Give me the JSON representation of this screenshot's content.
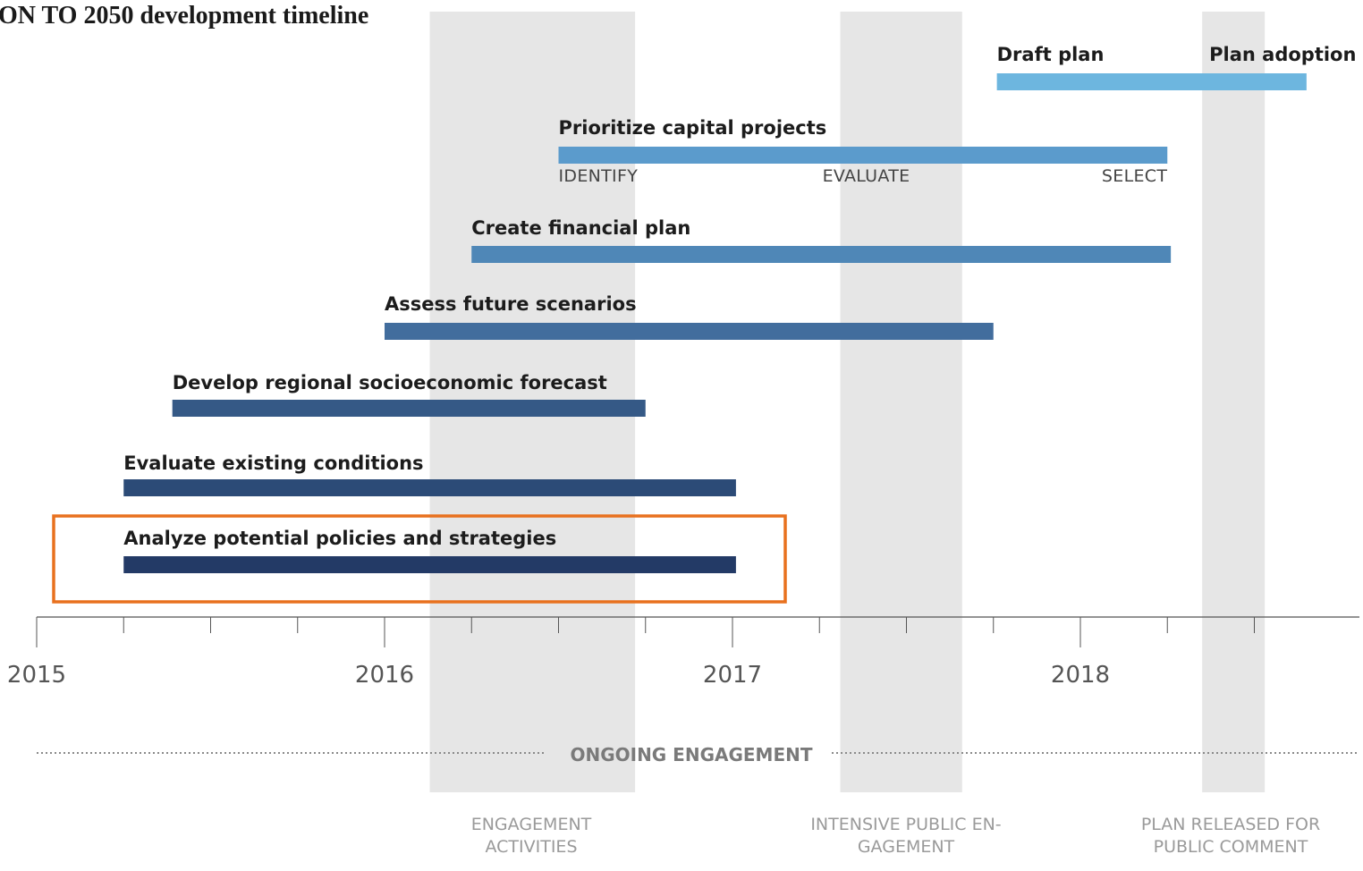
{
  "title": "ON TO 2050 development timeline",
  "colors": {
    "band": "#e6e6e6",
    "highlight": "#e8711e",
    "axis": "#555555"
  },
  "chart_data": {
    "type": "gantt",
    "x_axis": {
      "range": [
        2015.0,
        2018.7
      ],
      "major_ticks": [
        2015,
        2016,
        2017,
        2018
      ],
      "tick_labels": [
        "2015",
        "2016",
        "2017",
        "2018"
      ],
      "minor_tick_step": 0.25
    },
    "bands": [
      {
        "start": 2016.13,
        "end": 2016.72,
        "label_lines": [
          "ENGAGEMENT",
          "ACTIVITIES"
        ]
      },
      {
        "start": 2017.31,
        "end": 2017.66,
        "label_lines": [
          "INTENSIVE PUBLIC EN-",
          "GAGEMENT"
        ]
      },
      {
        "start": 2018.35,
        "end": 2018.53,
        "label_lines": [
          "PLAN RELEASED FOR",
          "PUBLIC COMMENT"
        ]
      }
    ],
    "tasks": [
      {
        "label": "Draft plan",
        "start": 2017.76,
        "end": 2018.35,
        "color": "#6db6df",
        "end_label": "Plan adoption",
        "highlighted": false
      },
      {
        "label": "Prioritize capital projects",
        "start": 2016.5,
        "end": 2018.25,
        "color": "#5b9bcc",
        "phases": [
          "IDENTIFY",
          "EVALUATE",
          "SELECT"
        ],
        "highlighted": false
      },
      {
        "label": "Create financial plan",
        "start": 2016.25,
        "end": 2018.26,
        "color": "#4f87b7",
        "highlighted": false
      },
      {
        "label": "Assess future scenarios",
        "start": 2016.0,
        "end": 2017.75,
        "color": "#426d9d",
        "highlighted": false
      },
      {
        "label": "Develop regional socioeconomic forecast",
        "start": 2015.39,
        "end": 2016.75,
        "color": "#355986",
        "highlighted": false
      },
      {
        "label": "Evaluate existing conditions",
        "start": 2015.25,
        "end": 2017.01,
        "color": "#2c4b77",
        "highlighted": false
      },
      {
        "label": "Analyze potential policies and strategies",
        "start": 2015.25,
        "end": 2017.01,
        "color": "#233a66",
        "highlighted": true
      }
    ],
    "draft_bar_end": 2018.65,
    "engagement_line": {
      "label": "ONGOING ENGAGEMENT",
      "start": 2015.0,
      "end": 2018.7
    }
  }
}
